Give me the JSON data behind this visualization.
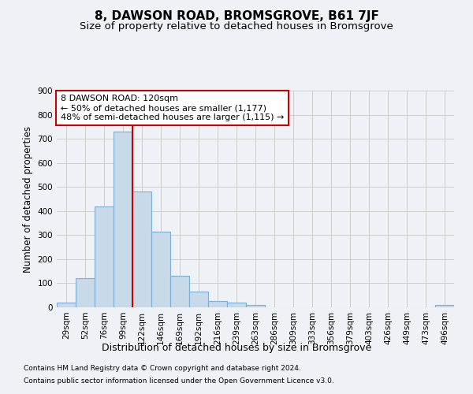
{
  "title": "8, DAWSON ROAD, BROMSGROVE, B61 7JF",
  "subtitle": "Size of property relative to detached houses in Bromsgrove",
  "xlabel": "Distribution of detached houses by size in Bromsgrove",
  "ylabel": "Number of detached properties",
  "footer_line1": "Contains HM Land Registry data © Crown copyright and database right 2024.",
  "footer_line2": "Contains public sector information licensed under the Open Government Licence v3.0.",
  "bin_labels": [
    "29sqm",
    "52sqm",
    "76sqm",
    "99sqm",
    "122sqm",
    "146sqm",
    "169sqm",
    "192sqm",
    "216sqm",
    "239sqm",
    "263sqm",
    "286sqm",
    "309sqm",
    "333sqm",
    "356sqm",
    "379sqm",
    "403sqm",
    "426sqm",
    "449sqm",
    "473sqm",
    "496sqm"
  ],
  "bar_values": [
    20,
    120,
    420,
    730,
    480,
    313,
    130,
    65,
    25,
    20,
    10,
    0,
    0,
    0,
    0,
    0,
    0,
    0,
    0,
    0,
    10
  ],
  "bar_color": "#c8d9ea",
  "bar_edge_color": "#7bafd4",
  "grid_color": "#cccccc",
  "bg_color": "#eef2f7",
  "plot_bg_color": "#eef2f7",
  "red_line_color": "#cc0000",
  "annotation_text": "8 DAWSON ROAD: 120sqm\n← 50% of detached houses are smaller (1,177)\n48% of semi-detached houses are larger (1,115) →",
  "annotation_box_color": "#ffffff",
  "annotation_border_color": "#cc0000",
  "ylim": [
    0,
    900
  ],
  "yticks": [
    0,
    100,
    200,
    300,
    400,
    500,
    600,
    700,
    800,
    900
  ],
  "red_line_bin_index": 4,
  "title_fontsize": 11,
  "subtitle_fontsize": 9.5,
  "ylabel_fontsize": 8.5,
  "xlabel_fontsize": 9,
  "tick_fontsize": 7.5,
  "footer_fontsize": 6.5,
  "annotation_fontsize": 8
}
